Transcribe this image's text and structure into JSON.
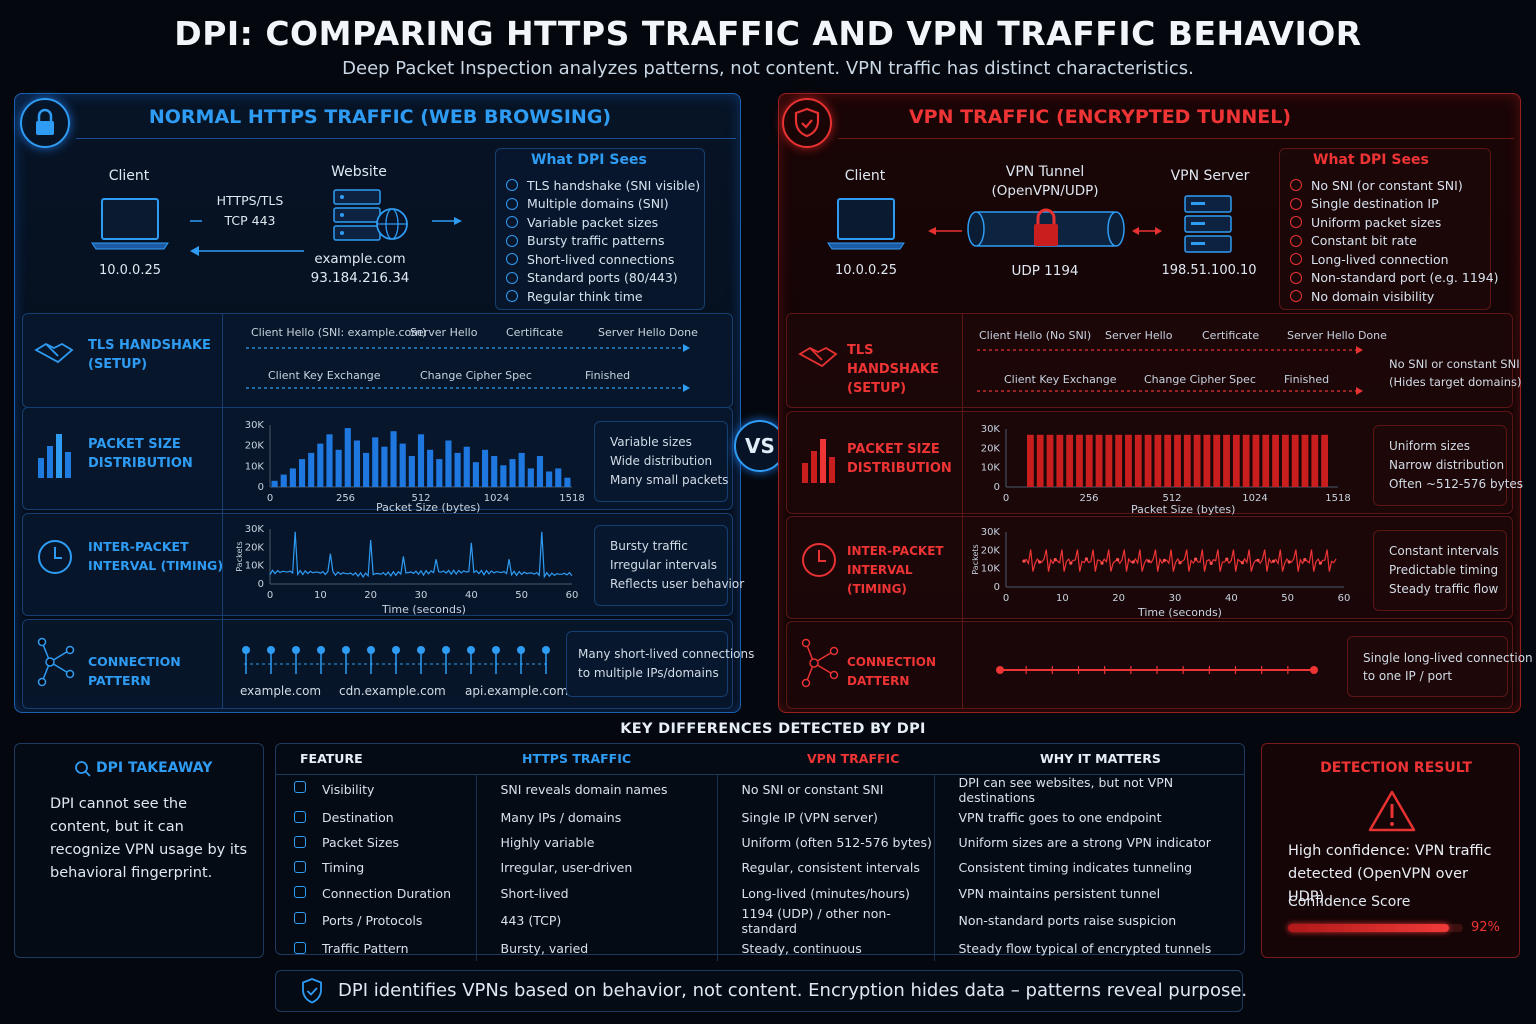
{
  "header": {
    "title": "DPI: COMPARING HTTPS TRAFFIC AND VPN TRAFFIC BEHAVIOR",
    "subtitle": "Deep Packet Inspection analyzes patterns, not content. VPN traffic has distinct characteristics."
  },
  "colors": {
    "https": "#2f9cf4",
    "vpn": "#ee3434"
  },
  "https": {
    "title": "NORMAL HTTPS TRAFFIC (WEB BROWSING)",
    "client_label": "Client",
    "client_ip": "10.0.0.25",
    "protocol": "HTTPS/TLS",
    "port": "TCP 443",
    "website_label": "Website",
    "website_domain": "example.com",
    "website_ip": "93.184.216.34",
    "sees_title": "What DPI Sees",
    "sees": [
      "TLS handshake (SNI visible)",
      "Multiple domains (SNI)",
      "Variable packet sizes",
      "Bursty traffic patterns",
      "Short-lived connections",
      "Standard ports (80/443)",
      "Regular think time"
    ],
    "handshake": {
      "label": "TLS HANDSHAKE (SETUP)",
      "row1": [
        "Client Hello (SNI: example.com)",
        "Server Hello",
        "Certificate",
        "Server Hello Done"
      ],
      "row2": [
        "Client Key Exchange",
        "Change Cipher Spec",
        "Finished"
      ]
    },
    "packet": {
      "label": "PACKET SIZE DISTRIBUTION",
      "yticks": [
        "30K",
        "20K",
        "10K",
        "0"
      ],
      "xticks": [
        "0",
        "256",
        "512",
        "1024",
        "1518"
      ],
      "xlabel": "Packet Size (bytes)",
      "notes": [
        "Variable sizes",
        "Wide distribution",
        "Many small packets"
      ]
    },
    "timing": {
      "label": "INTER-PACKET INTERVAL (TIMING)",
      "yticks": [
        "30K",
        "20K",
        "10K",
        "0"
      ],
      "xticks": [
        "0",
        "10",
        "20",
        "30",
        "40",
        "50",
        "60"
      ],
      "xlabel": "Time (seconds)",
      "ylabel": "Packets",
      "notes": [
        "Bursty traffic",
        "Irregular intervals",
        "Reflects user behavior"
      ]
    },
    "connection": {
      "label": "CONNECTION PATTERN",
      "domains": [
        "example.com",
        "cdn.example.com",
        "api.example.com"
      ],
      "notes": [
        "Many short-lived connections",
        "to multiple IPs/domains"
      ]
    }
  },
  "vpn": {
    "title": "VPN TRAFFIC (ENCRYPTED TUNNEL)",
    "client_label": "Client",
    "client_ip": "10.0.0.25",
    "tunnel_label": "VPN Tunnel",
    "tunnel_protocol": "(OpenVPN/UDP)",
    "tunnel_port": "UDP 1194",
    "server_label": "VPN Server",
    "server_ip": "198.51.100.10",
    "sees_title": "What DPI Sees",
    "sees": [
      "No SNI (or constant SNI)",
      "Single destination IP",
      "Uniform packet sizes",
      "Constant bit rate",
      "Long-lived connection",
      "Non-standard port (e.g. 1194)",
      "No domain visibility"
    ],
    "handshake": {
      "label": "TLS HANDSHAKE (SETUP)",
      "row1": [
        "Client Hello (No SNI)",
        "Server Hello",
        "Certificate",
        "Server Hello Done"
      ],
      "row2": [
        "Client Key Exchange",
        "Change Cipher Spec",
        "Finished"
      ],
      "notes": [
        "No SNI or constant SNI",
        "(Hides target domains)"
      ]
    },
    "packet": {
      "label": "PACKET SIZE DISTRIBUTION",
      "yticks": [
        "30K",
        "20K",
        "10K",
        "0"
      ],
      "xticks": [
        "0",
        "256",
        "512",
        "1024",
        "1518"
      ],
      "xlabel": "Packet Size (bytes)",
      "notes": [
        "Uniform sizes",
        "Narrow distribution",
        "Often ~512-576 bytes"
      ]
    },
    "timing": {
      "label": "INTER-PACKET INTERVAL (TIMING)",
      "yticks": [
        "30K",
        "20K",
        "10K",
        "0"
      ],
      "xticks": [
        "0",
        "10",
        "20",
        "30",
        "40",
        "50",
        "60"
      ],
      "xlabel": "Time (seconds)",
      "ylabel": "Packets",
      "notes": [
        "Constant intervals",
        "Predictable timing",
        "Steady traffic flow"
      ]
    },
    "connection": {
      "label": "CONNECTION DATTERN",
      "notes": [
        "Single long-lived connection",
        "to one IP / port"
      ]
    }
  },
  "vs_label": "VS",
  "key_diff_title": "KEY DIFFERENCES DETECTED BY DPI",
  "takeaway": {
    "title": "DPI TAKEAWAY",
    "text": "DPI cannot see the content, but it can recognize VPN usage by its behavioral fingerprint."
  },
  "table": {
    "headers": [
      "FEATURE",
      "HTTPS TRAFFIC",
      "VPN TRAFFIC",
      "WHY IT MATTERS"
    ],
    "rows": [
      [
        "Visibility",
        "SNI reveals domain names",
        "No SNI or constant SNI",
        "DPI can see websites, but not VPN destinations"
      ],
      [
        "Destination",
        "Many IPs / domains",
        "Single IP (VPN server)",
        "VPN traffic goes to one endpoint"
      ],
      [
        "Packet Sizes",
        "Highly variable",
        "Uniform (often 512-576 bytes)",
        "Uniform sizes are a strong VPN indicator"
      ],
      [
        "Timing",
        "Irregular, user-driven",
        "Regular, consistent intervals",
        "Consistent timing indicates tunneling"
      ],
      [
        "Connection Duration",
        "Short-lived",
        "Long-lived (minutes/hours)",
        "VPN maintains persistent tunnel"
      ],
      [
        "Ports / Protocols",
        "443 (TCP)",
        "1194 (UDP) / other non-standard",
        "Non-standard ports raise suspicion"
      ],
      [
        "Traffic Pattern",
        "Bursty, varied",
        "Steady, continuous",
        "Steady flow typical of encrypted tunnels"
      ]
    ]
  },
  "detection": {
    "title": "DETECTION RESULT",
    "text": "High confidence: VPN traffic detected (OpenVPN over UDP)",
    "score_label": "Confidence Score",
    "score_value": "92%",
    "score_fraction": 0.92
  },
  "footer": "DPI identifies VPNs based on behavior, not content. Encryption hides data – patterns reveal purpose."
}
